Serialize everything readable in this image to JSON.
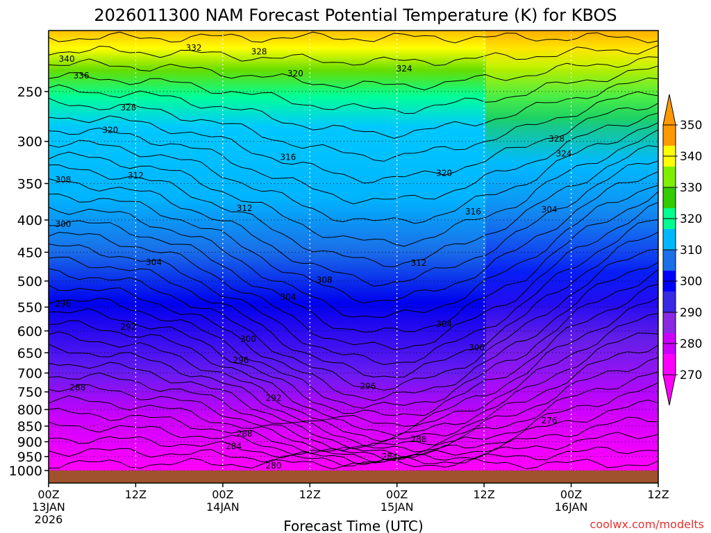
{
  "chart_data": {
    "type": "heatmap",
    "title": "2026011300 NAM Forecast Potential Temperature (K) for KBOS",
    "xlabel": "Forecast Time (UTC)",
    "ylabel": "",
    "watermark": "coolwx.com/modelts",
    "x_hours": [
      0,
      12,
      24,
      36,
      48,
      60,
      72,
      84
    ],
    "x_ticks": [
      {
        "hour": 0,
        "top": "00Z",
        "mid": "13JAN",
        "bot": "2026"
      },
      {
        "hour": 12,
        "top": "12Z",
        "mid": "",
        "bot": ""
      },
      {
        "hour": 24,
        "top": "00Z",
        "mid": "14JAN",
        "bot": ""
      },
      {
        "hour": 36,
        "top": "12Z",
        "mid": "",
        "bot": ""
      },
      {
        "hour": 48,
        "top": "00Z",
        "mid": "15JAN",
        "bot": ""
      },
      {
        "hour": 60,
        "top": "12Z",
        "mid": "",
        "bot": ""
      },
      {
        "hour": 72,
        "top": "00Z",
        "mid": "16JAN",
        "bot": ""
      },
      {
        "hour": 84,
        "top": "12Z",
        "mid": "",
        "bot": ""
      }
    ],
    "xlim": [
      0,
      84
    ],
    "y_ticks": [
      250,
      300,
      350,
      400,
      450,
      500,
      550,
      600,
      650,
      700,
      750,
      800,
      850,
      900,
      950,
      1000
    ],
    "ylim": [
      200,
      1015
    ],
    "y_scale": "log",
    "colorbar": {
      "levels": [
        270,
        280,
        290,
        300,
        310,
        320,
        330,
        340,
        350
      ],
      "colors": [
        "#ff00ff",
        "#cc00ff",
        "#8a2be2",
        "#3a2ae6",
        "#0000ff",
        "#1c6fe8",
        "#00b8ff",
        "#00ff90",
        "#33cc00",
        "#7fee00",
        "#ffff00",
        "#ff9900"
      ]
    },
    "contour_labels": [
      {
        "text": "340",
        "hour": 2.5,
        "p": 222
      },
      {
        "text": "336",
        "hour": 4.5,
        "p": 236
      },
      {
        "text": "332",
        "hour": 20,
        "p": 213
      },
      {
        "text": "328",
        "hour": 29,
        "p": 216
      },
      {
        "text": "320",
        "hour": 34,
        "p": 234
      },
      {
        "text": "324",
        "hour": 49,
        "p": 230
      },
      {
        "text": "328",
        "hour": 11,
        "p": 265
      },
      {
        "text": "320",
        "hour": 8.5,
        "p": 288
      },
      {
        "text": "312",
        "hour": 12,
        "p": 340
      },
      {
        "text": "316",
        "hour": 33,
        "p": 318
      },
      {
        "text": "320",
        "hour": 54.5,
        "p": 337
      },
      {
        "text": "312",
        "hour": 27,
        "p": 383
      },
      {
        "text": "316",
        "hour": 58.5,
        "p": 388
      },
      {
        "text": "328",
        "hour": 70,
        "p": 297
      },
      {
        "text": "324",
        "hour": 71,
        "p": 314
      },
      {
        "text": "304",
        "hour": 69,
        "p": 385
      },
      {
        "text": "308",
        "hour": 2,
        "p": 345
      },
      {
        "text": "300",
        "hour": 2,
        "p": 406
      },
      {
        "text": "304",
        "hour": 14.5,
        "p": 467
      },
      {
        "text": "312",
        "hour": 51,
        "p": 468
      },
      {
        "text": "308",
        "hour": 38,
        "p": 498
      },
      {
        "text": "304",
        "hour": 33,
        "p": 530
      },
      {
        "text": "296",
        "hour": 2,
        "p": 543
      },
      {
        "text": "292",
        "hour": 11,
        "p": 591
      },
      {
        "text": "300",
        "hour": 27.5,
        "p": 618
      },
      {
        "text": "304",
        "hour": 54.5,
        "p": 585
      },
      {
        "text": "300",
        "hour": 59,
        "p": 638
      },
      {
        "text": "296",
        "hour": 26.5,
        "p": 668
      },
      {
        "text": "296",
        "hour": 44,
        "p": 735
      },
      {
        "text": "288",
        "hour": 4,
        "p": 738
      },
      {
        "text": "292",
        "hour": 31,
        "p": 767
      },
      {
        "text": "276",
        "hour": 69,
        "p": 833
      },
      {
        "text": "288",
        "hour": 27,
        "p": 874
      },
      {
        "text": "288",
        "hour": 51,
        "p": 892
      },
      {
        "text": "284",
        "hour": 25.5,
        "p": 915
      },
      {
        "text": "284",
        "hour": 47,
        "p": 950
      },
      {
        "text": "280",
        "hour": 31,
        "p": 982
      }
    ]
  }
}
